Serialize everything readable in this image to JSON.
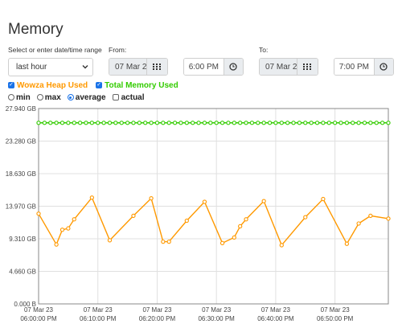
{
  "page": {
    "title": "Memory"
  },
  "filters": {
    "range_label": "Select or enter date/time range",
    "range_value": "last hour",
    "from_label": "From:",
    "from_date": "07 Mar 2",
    "from_time": "6:00 PM",
    "to_label": "To:",
    "to_date": "07 Mar 2",
    "to_time": "7:00 PM"
  },
  "series_toggles": [
    {
      "label": "Wowza Heap Used",
      "checked": true,
      "color": "#ff9900"
    },
    {
      "label": "Total Memory Used",
      "checked": true,
      "color": "#33cc00"
    }
  ],
  "aggregations": [
    {
      "label": "min",
      "type": "radio",
      "selected": false
    },
    {
      "label": "max",
      "type": "radio",
      "selected": false
    },
    {
      "label": "average",
      "type": "radio",
      "selected": true
    },
    {
      "label": "actual",
      "type": "checkbox",
      "selected": false
    }
  ],
  "icons": {
    "date_button": "calendar-grid-icon",
    "time_button": "clock-icon",
    "range_select": "chevron-down-icon"
  },
  "chart_data": {
    "type": "line",
    "y_unit": "GB",
    "ylim": [
      0,
      27.94
    ],
    "yticks": [
      0,
      4.66,
      9.31,
      13.97,
      18.63,
      23.28,
      27.94
    ],
    "ytick_labels": [
      "0.000 B",
      "4.660 GB",
      "9.310 GB",
      "13.970 GB",
      "18.630 GB",
      "23.280 GB",
      "27.940 GB"
    ],
    "xlim": [
      0,
      59
    ],
    "xticks": [
      0,
      10,
      20,
      30,
      40,
      50
    ],
    "xtick_labels": [
      [
        "07 Mar 23",
        "06:00:00 PM"
      ],
      [
        "07 Mar 23",
        "06:10:00 PM"
      ],
      [
        "07 Mar 23",
        "06:20:00 PM"
      ],
      [
        "07 Mar 23",
        "06:30:00 PM"
      ],
      [
        "07 Mar 23",
        "06:40:00 PM"
      ],
      [
        "07 Mar 23",
        "06:50:00 PM"
      ]
    ],
    "grid": true,
    "series": [
      {
        "name": "Total Memory Used",
        "color": "#33cc00",
        "x": [
          0,
          1,
          2,
          3,
          4,
          5,
          6,
          7,
          8,
          9,
          10,
          11,
          12,
          13,
          14,
          15,
          16,
          17,
          18,
          19,
          20,
          21,
          22,
          23,
          24,
          25,
          26,
          27,
          28,
          29,
          30,
          31,
          32,
          33,
          34,
          35,
          36,
          37,
          38,
          39,
          40,
          41,
          42,
          43,
          44,
          45,
          46,
          47,
          48,
          49,
          50,
          51,
          52,
          53,
          54,
          55,
          56,
          57,
          58,
          59
        ],
        "y": [
          25.9,
          25.9,
          25.9,
          25.9,
          25.9,
          25.9,
          25.9,
          25.9,
          25.9,
          25.9,
          25.9,
          25.9,
          25.9,
          25.9,
          25.9,
          25.9,
          25.9,
          25.9,
          25.9,
          25.9,
          25.9,
          25.9,
          25.9,
          25.9,
          25.9,
          25.9,
          25.9,
          25.9,
          25.9,
          25.9,
          25.9,
          25.9,
          25.9,
          25.9,
          25.9,
          25.9,
          25.9,
          25.9,
          25.9,
          25.9,
          25.9,
          25.9,
          25.9,
          25.9,
          25.9,
          25.9,
          25.9,
          25.9,
          25.9,
          25.9,
          25.9,
          25.9,
          25.9,
          25.9,
          25.9,
          25.9,
          25.9,
          25.9,
          25.9,
          25.9
        ]
      },
      {
        "name": "Wowza Heap Used",
        "color": "#ff9900",
        "x": [
          0,
          3,
          4,
          5,
          6,
          9,
          12,
          16,
          19,
          21,
          22,
          25,
          28,
          31,
          33,
          34,
          35,
          38,
          41,
          45,
          48,
          52,
          54,
          56,
          59
        ],
        "y": [
          12.9,
          8.5,
          10.6,
          10.8,
          12.1,
          15.2,
          9.1,
          12.6,
          15.1,
          8.9,
          8.9,
          11.9,
          14.6,
          8.7,
          9.5,
          11.1,
          12.1,
          14.7,
          8.4,
          12.4,
          15.0,
          8.6,
          11.5,
          12.6,
          12.2
        ]
      }
    ]
  }
}
